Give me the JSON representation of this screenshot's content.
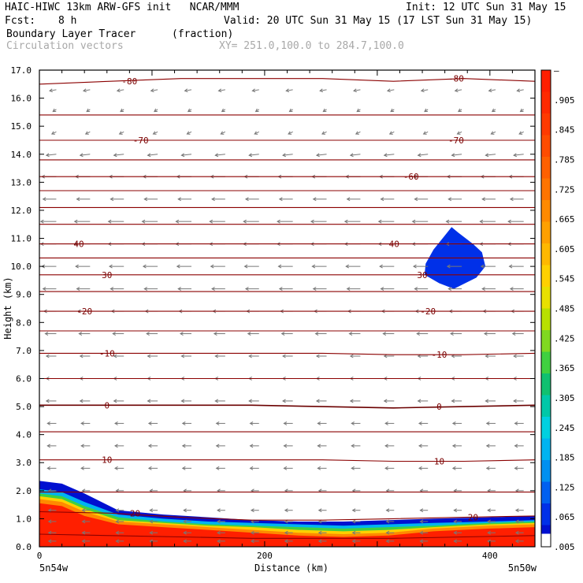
{
  "header": {
    "model": "HAIC-HIWC 13km ARW-GFS init   NCAR/MMM",
    "init": "Init: 12 UTC Sun 31 May 15",
    "fcst_label": "Fcst:",
    "fcst_value": "8 h",
    "valid": "Valid: 20 UTC Sun 31 May 15 (17 LST Sun 31 May 15)",
    "field": "Boundary Layer Tracer",
    "units": "(fraction)",
    "vectors": "Circulation vectors",
    "xy": "XY= 251.0,100.0 to 284.7,100.0"
  },
  "chart_data": {
    "type": "heatmap",
    "xlabel": "Distance (km)",
    "ylabel": "Height (km)",
    "xlim": [
      0,
      440
    ],
    "ylim": [
      0,
      17
    ],
    "x_ticks": [
      {
        "value": 0,
        "label": "0"
      },
      {
        "value": 200,
        "label": "200"
      },
      {
        "value": 400,
        "label": "400"
      }
    ],
    "x_end_labels": {
      "left": "5n54w",
      "right": "5n50w"
    },
    "y_ticks": [
      "0.0",
      "1.0",
      "2.0",
      "3.0",
      "4.0",
      "5.0",
      "6.0",
      "7.0",
      "8.0",
      "9.0",
      "10.0",
      "11.0",
      "12.0",
      "13.0",
      "14.0",
      "15.0",
      "16.0",
      "17.0"
    ],
    "colorbar": {
      "labels": [
        "–",
        ".905",
        ".845",
        ".785",
        ".725",
        ".665",
        ".605",
        ".545",
        ".485",
        ".425",
        ".365",
        ".305",
        ".245",
        ".185",
        ".125",
        ".065",
        ".005"
      ],
      "colors": [
        "#ff1f00",
        "#ff2a00",
        "#ff3a00",
        "#ff4c00",
        "#ff6000",
        "#ff7400",
        "#ff8a00",
        "#ffa000",
        "#ffb800",
        "#ffd000",
        "#e8e000",
        "#b8e000",
        "#80d820",
        "#40d040",
        "#10c070",
        "#00c8a8",
        "#00d0e0",
        "#00b4f0",
        "#0090f0",
        "#0060f0",
        "#0030e8",
        "#0010d0"
      ]
    },
    "temperature_contours_C": [
      {
        "value": -80,
        "y": [
          16.5,
          16.6,
          16.7,
          16.7,
          16.7,
          16.6,
          16.7,
          16.6
        ],
        "labels": [
          {
            "text": "-80",
            "x": 80
          },
          {
            "text": "-80",
            "x": 370
          }
        ]
      },
      {
        "value": -75,
        "y": [
          15.4,
          15.4,
          15.4,
          15.4,
          15.4,
          15.4,
          15.4,
          15.4
        ],
        "labels": []
      },
      {
        "value": -70,
        "y": [
          14.5,
          14.5,
          14.5,
          14.5,
          14.5,
          14.5,
          14.5,
          14.5
        ],
        "labels": [
          {
            "text": "-70",
            "x": 90
          },
          {
            "text": "-70",
            "x": 370
          }
        ]
      },
      {
        "value": -65,
        "y": [
          13.8,
          13.8,
          13.8,
          13.8,
          13.8,
          13.8,
          13.8,
          13.8
        ],
        "labels": []
      },
      {
        "value": -60,
        "y": [
          13.2,
          13.2,
          13.2,
          13.2,
          13.2,
          13.2,
          13.2,
          13.2
        ],
        "labels": [
          {
            "text": "-60",
            "x": 330
          }
        ]
      },
      {
        "value": -55,
        "y": [
          12.7,
          12.7,
          12.7,
          12.7,
          12.7,
          12.7,
          12.7,
          12.7
        ],
        "labels": []
      },
      {
        "value": -50,
        "y": [
          12.1,
          12.1,
          12.1,
          12.1,
          12.1,
          12.1,
          12.1,
          12.1
        ],
        "labels": []
      },
      {
        "value": -45,
        "y": [
          11.5,
          11.5,
          11.5,
          11.5,
          11.5,
          11.5,
          11.5,
          11.5
        ],
        "labels": []
      },
      {
        "value": -40,
        "y": [
          10.8,
          10.8,
          10.8,
          10.8,
          10.8,
          10.8,
          10.8,
          10.8
        ],
        "labels": [
          {
            "text": "40",
            "x": 35
          },
          {
            "text": "40",
            "x": 315
          }
        ]
      },
      {
        "value": -35,
        "y": [
          10.3,
          10.3,
          10.3,
          10.3,
          10.3,
          10.3,
          10.3,
          10.3
        ],
        "labels": []
      },
      {
        "value": -30,
        "y": [
          9.7,
          9.7,
          9.7,
          9.7,
          9.7,
          9.7,
          9.7,
          9.7
        ],
        "labels": [
          {
            "text": "30",
            "x": 60
          },
          {
            "text": "30",
            "x": 340
          }
        ]
      },
      {
        "value": -25,
        "y": [
          9.1,
          9.1,
          9.1,
          9.1,
          9.1,
          9.1,
          9.1,
          9.1
        ],
        "labels": []
      },
      {
        "value": -20,
        "y": [
          8.4,
          8.4,
          8.4,
          8.4,
          8.4,
          8.4,
          8.4,
          8.4
        ],
        "labels": [
          {
            "text": "-20",
            "x": 40
          },
          {
            "text": "-20",
            "x": 345
          }
        ]
      },
      {
        "value": -15,
        "y": [
          7.7,
          7.7,
          7.7,
          7.7,
          7.7,
          7.7,
          7.7,
          7.7
        ],
        "labels": []
      },
      {
        "value": -10,
        "y": [
          6.9,
          6.9,
          6.9,
          6.9,
          6.9,
          6.85,
          6.85,
          6.9
        ],
        "labels": [
          {
            "text": "-10",
            "x": 60
          },
          {
            "text": "-10",
            "x": 355
          }
        ]
      },
      {
        "value": -5,
        "y": [
          6.0,
          6.0,
          6.0,
          6.0,
          6.0,
          6.0,
          6.0,
          6.0
        ],
        "labels": []
      },
      {
        "value": 0,
        "y": [
          5.05,
          5.05,
          5.05,
          5.05,
          5.0,
          4.95,
          5.0,
          5.05
        ],
        "labels": [
          {
            "text": "0",
            "x": 60
          },
          {
            "text": "0",
            "x": 355
          }
        ]
      },
      {
        "value": 5,
        "y": [
          4.1,
          4.1,
          4.1,
          4.1,
          4.1,
          4.1,
          4.1,
          4.1
        ],
        "labels": []
      },
      {
        "value": 10,
        "y": [
          3.1,
          3.1,
          3.1,
          3.1,
          3.1,
          3.05,
          3.05,
          3.1
        ],
        "labels": [
          {
            "text": "10",
            "x": 60
          },
          {
            "text": "10",
            "x": 355
          }
        ]
      },
      {
        "value": 15,
        "y": [
          1.95,
          1.95,
          1.95,
          1.95,
          1.95,
          1.95,
          1.95,
          1.95
        ],
        "labels": []
      },
      {
        "value": 20,
        "y": [
          1.25,
          1.2,
          1.05,
          0.95,
          0.95,
          1.0,
          1.05,
          1.1
        ],
        "labels": [
          {
            "text": "20",
            "x": 85
          },
          {
            "text": "20",
            "x": 385
          }
        ]
      },
      {
        "value": 25,
        "y": [
          0.45,
          0.4,
          0.35,
          0.3,
          0.3,
          0.3,
          0.35,
          0.4
        ],
        "labels": []
      }
    ],
    "tracer_layers": [
      {
        "fraction": 0.005,
        "color": "#0010d0",
        "top_km": [
          2.35,
          2.25,
          1.9,
          1.3,
          1.15,
          1.05,
          0.95,
          0.9,
          0.9,
          0.95,
          1.0,
          1.05,
          1.1
        ]
      },
      {
        "fraction": 0.185,
        "color": "#00b4f0",
        "top_km": [
          2.05,
          1.95,
          1.6,
          1.15,
          1.0,
          0.9,
          0.85,
          0.8,
          0.75,
          0.8,
          0.85,
          0.9,
          0.95
        ]
      },
      {
        "fraction": 0.365,
        "color": "#40d040",
        "top_km": [
          1.9,
          1.8,
          1.45,
          1.05,
          0.9,
          0.8,
          0.75,
          0.7,
          0.65,
          0.7,
          0.75,
          0.85,
          0.9
        ]
      },
      {
        "fraction": 0.545,
        "color": "#ffd000",
        "top_km": [
          1.8,
          1.7,
          1.35,
          0.95,
          0.85,
          0.75,
          0.7,
          0.6,
          0.55,
          0.6,
          0.7,
          0.8,
          0.85
        ]
      },
      {
        "fraction": 0.725,
        "color": "#ff8a00",
        "top_km": [
          1.7,
          1.6,
          1.25,
          0.9,
          0.8,
          0.7,
          0.6,
          0.5,
          0.45,
          0.5,
          0.65,
          0.75,
          0.8
        ]
      },
      {
        "fraction": 0.905,
        "color": "#ff1f00",
        "top_km": [
          1.55,
          1.45,
          1.1,
          0.8,
          0.7,
          0.6,
          0.5,
          0.4,
          0.35,
          0.4,
          0.55,
          0.65,
          0.7
        ]
      }
    ],
    "tracer_x_km": [
      0,
      20,
      40,
      70,
      110,
      150,
      190,
      230,
      270,
      310,
      350,
      400,
      440
    ],
    "upper_blob": {
      "fraction": 0.005,
      "color": "#0030e8",
      "outline": [
        [
          343,
          10.1
        ],
        [
          350,
          10.6
        ],
        [
          360,
          11.1
        ],
        [
          366,
          11.4
        ],
        [
          372,
          11.2
        ],
        [
          385,
          10.8
        ],
        [
          393,
          10.5
        ],
        [
          396,
          10.0
        ],
        [
          388,
          9.6
        ],
        [
          368,
          9.2
        ],
        [
          355,
          9.4
        ],
        [
          342,
          9.7
        ]
      ]
    },
    "vectors": {
      "x_km": [
        15,
        45,
        75,
        105,
        135,
        165,
        195,
        225,
        255,
        285,
        315,
        345,
        375,
        405,
        430
      ],
      "levels": [
        {
          "z": 16.3,
          "u": -6,
          "w": -1
        },
        {
          "z": 15.6,
          "u": -3,
          "w": -2
        },
        {
          "z": 14.8,
          "u": -4,
          "w": -2
        },
        {
          "z": 14.0,
          "u": -9,
          "w": -1
        },
        {
          "z": 13.2,
          "u": -13,
          "w": 0
        },
        {
          "z": 12.4,
          "u": -12,
          "w": 0
        },
        {
          "z": 11.6,
          "u": -14,
          "w": 0
        },
        {
          "z": 10.8,
          "u": -14,
          "w": 0
        },
        {
          "z": 10.0,
          "u": -13,
          "w": 0
        },
        {
          "z": 9.2,
          "u": -12,
          "w": 0
        },
        {
          "z": 8.4,
          "u": -11,
          "w": 0
        },
        {
          "z": 7.6,
          "u": -10,
          "w": 0
        },
        {
          "z": 6.8,
          "u": -9,
          "w": 0
        },
        {
          "z": 6.0,
          "u": -9,
          "w": 0
        },
        {
          "z": 5.2,
          "u": -9,
          "w": 0
        },
        {
          "z": 4.4,
          "u": -8,
          "w": 0
        },
        {
          "z": 3.6,
          "u": -8,
          "w": 0
        },
        {
          "z": 2.8,
          "u": -8,
          "w": 0
        },
        {
          "z": 2.0,
          "u": -7,
          "w": 0
        },
        {
          "z": 1.3,
          "u": -7,
          "w": 0
        },
        {
          "z": 0.9,
          "u": -7,
          "w": 0
        },
        {
          "z": 0.5,
          "u": -7,
          "w": 0
        },
        {
          "z": 0.2,
          "u": -7,
          "w": 0
        }
      ]
    }
  }
}
